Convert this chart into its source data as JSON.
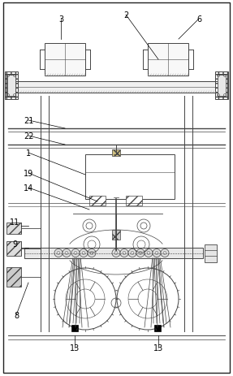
{
  "fig_width": 2.87,
  "fig_height": 4.64,
  "dpi": 100,
  "lc": "#444444",
  "lc2": "#666666",
  "dark": "#111111",
  "gray1": "#cccccc",
  "gray2": "#dddddd",
  "gray3": "#eeeeee",
  "hatch_gray": "#aaaaaa"
}
